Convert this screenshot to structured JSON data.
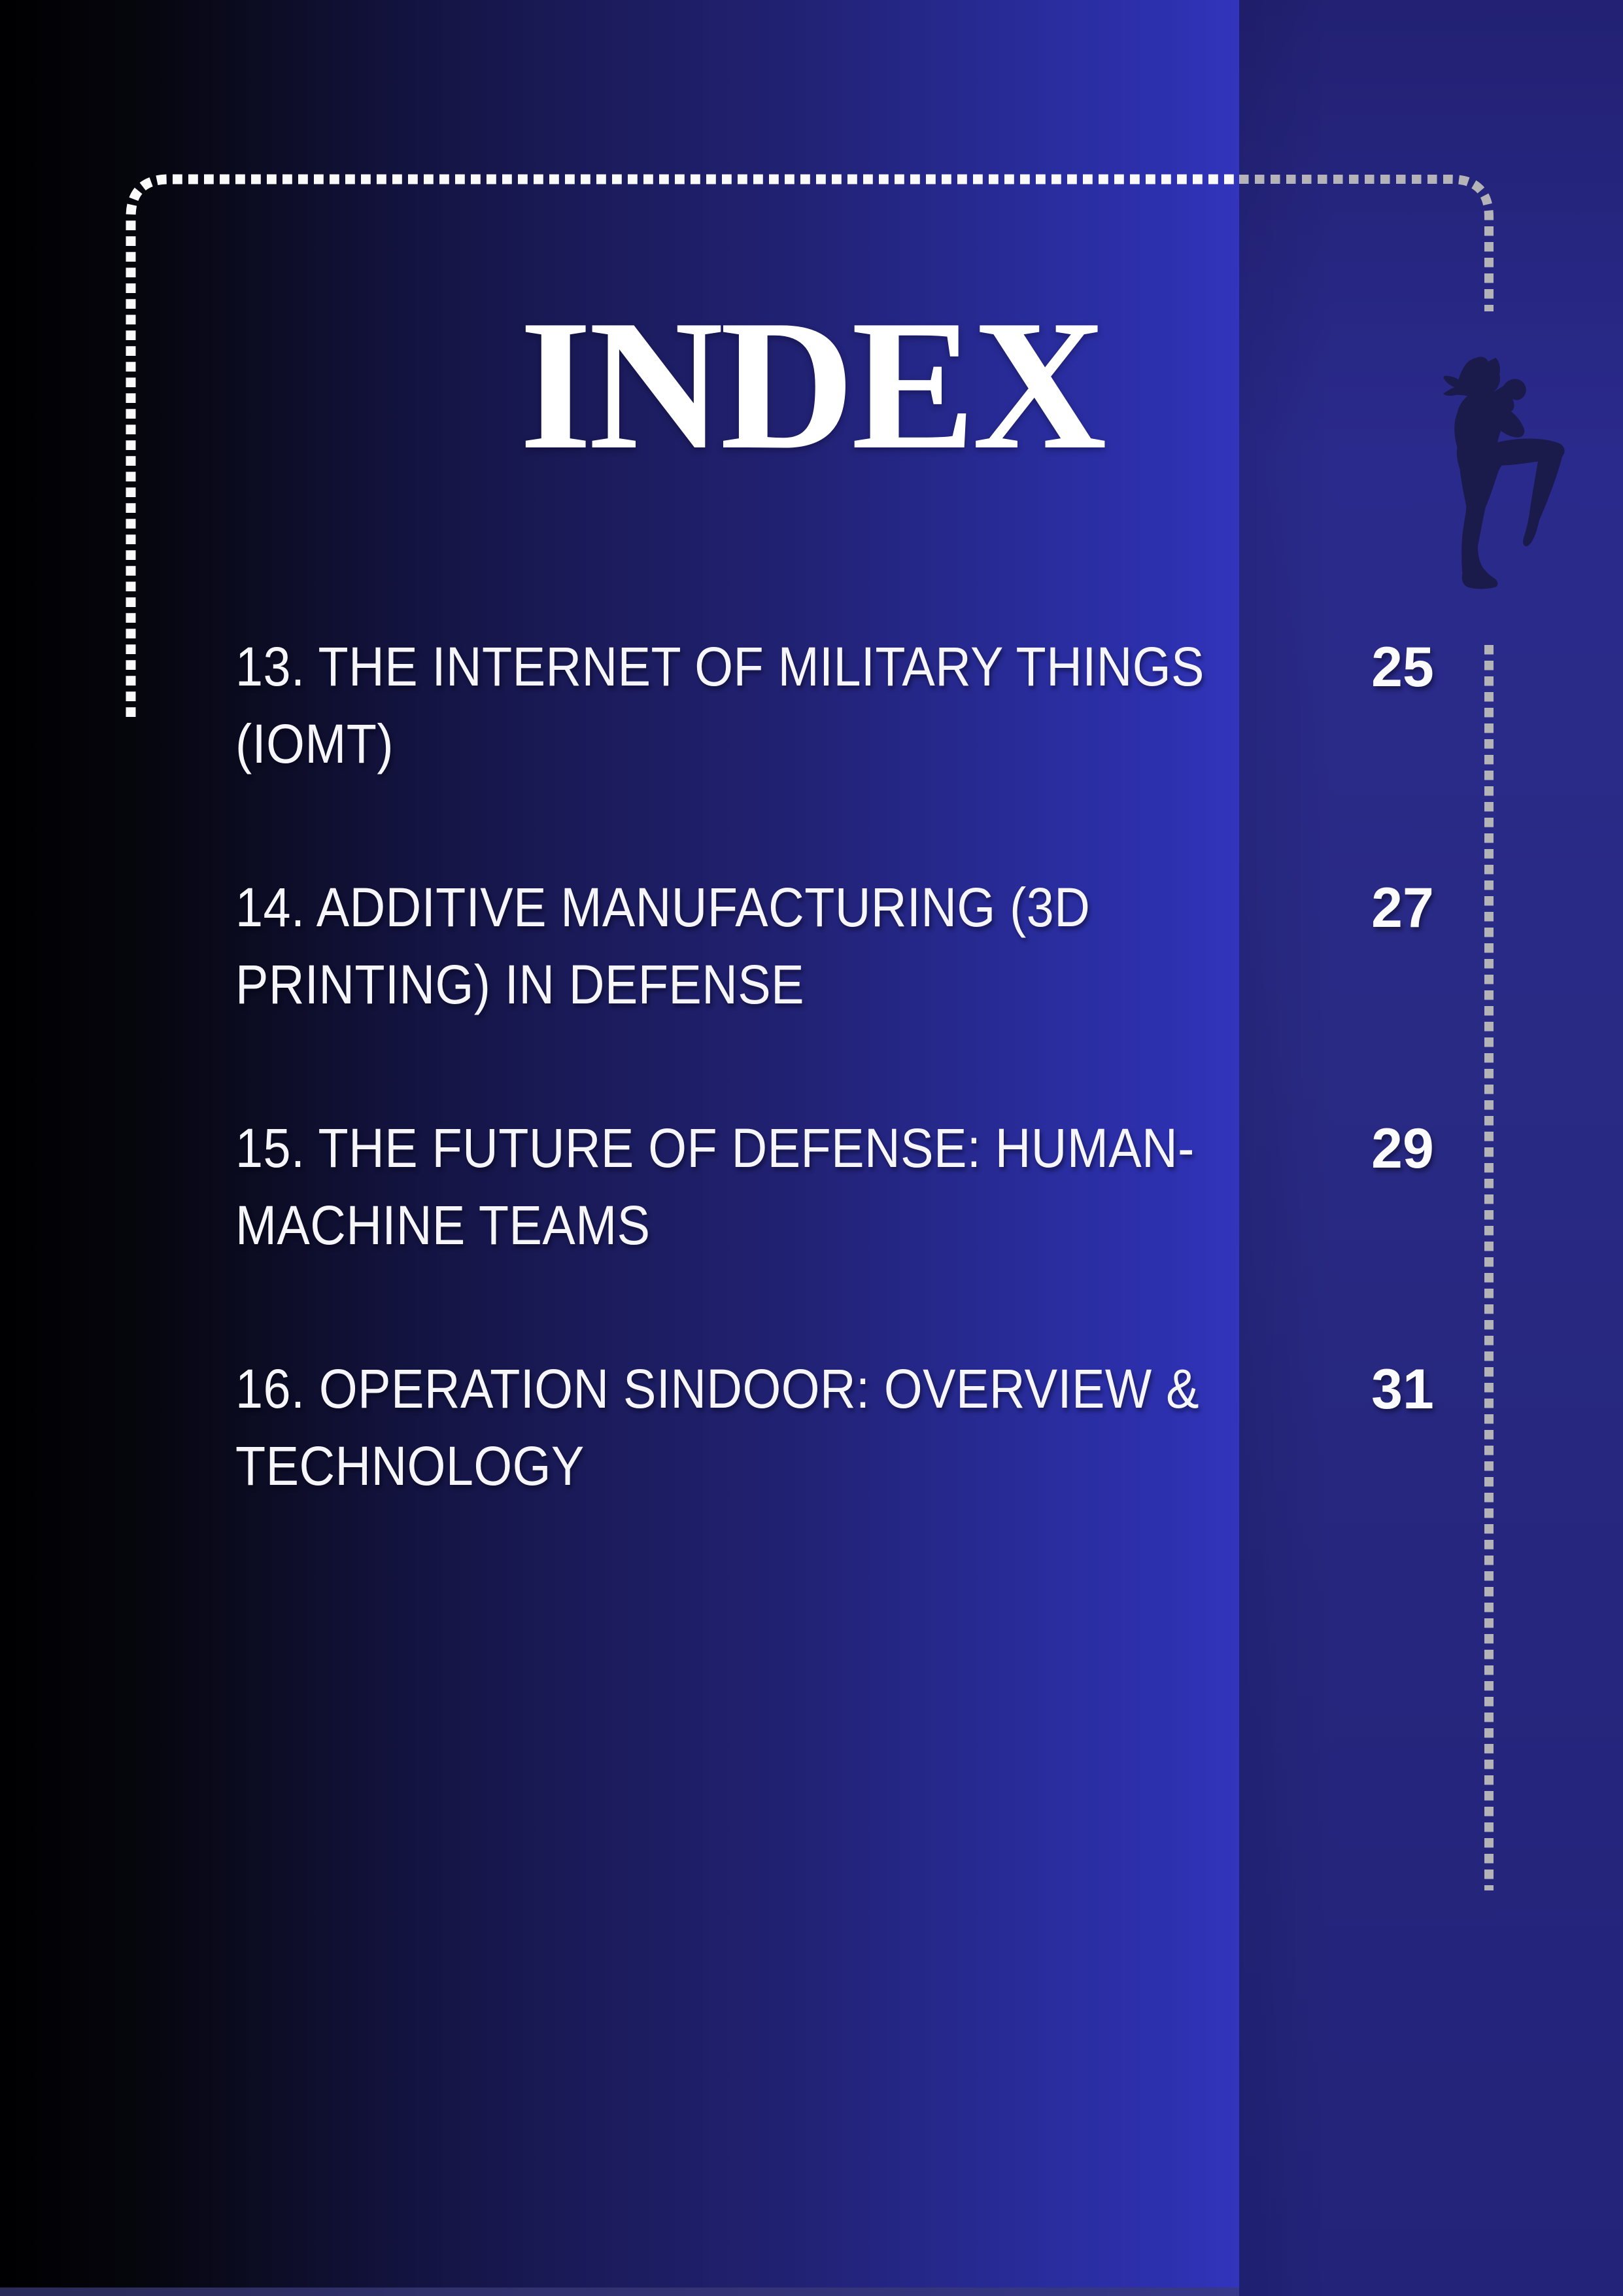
{
  "page": {
    "title": "INDEX"
  },
  "index": {
    "entries": [
      {
        "line1": "13. THE INTERNET OF MILITARY THINGS",
        "line2": "(IOMT)",
        "page": "25"
      },
      {
        "line1": "14. ADDITIVE MANUFACTURING (3D",
        "line2": "PRINTING) IN DEFENSE",
        "page": "27"
      },
      {
        "line1": "15. THE FUTURE OF DEFENSE: HUMAN-",
        "line2": "MACHINE TEAMS",
        "page": "29"
      },
      {
        "line1": "16. OPERATION SINDOOR: OVERVIEW &",
        "line2": "TECHNOLOGY",
        "page": "31"
      }
    ]
  },
  "decor": {
    "figure_icon": "muay-thai-kickboxer-silhouette",
    "border_style": "square-dotted-frame",
    "colors": {
      "background_left": "#000002",
      "background_bright_blue": "#3235bd",
      "right_panel_blue": "#28287f",
      "dot_white": "#fafafa",
      "dot_silver": "#b4b4b8",
      "figure_silhouette": "#1a1a4b",
      "text_white": "#f6f6fa"
    }
  }
}
